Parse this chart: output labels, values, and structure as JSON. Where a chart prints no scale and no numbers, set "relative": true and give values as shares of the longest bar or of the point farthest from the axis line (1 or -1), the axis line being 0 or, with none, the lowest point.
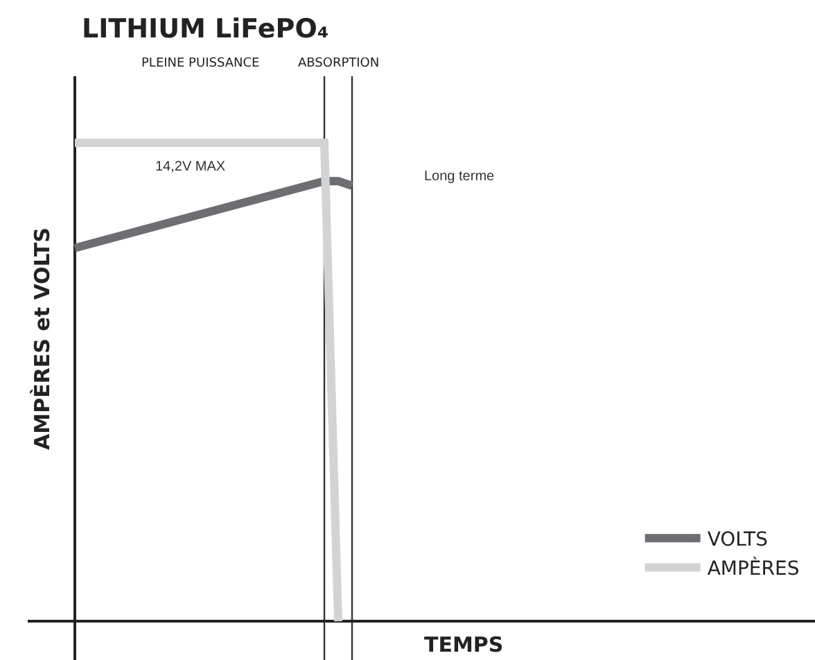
{
  "chart_data": {
    "type": "line",
    "title": "LITHIUM LiFePO₄",
    "xlabel": "TEMPS",
    "ylabel": "AMPÈRES et VOLTS",
    "relative": true,
    "legend": "bottom right",
    "line_style": "solid",
    "marker": "none",
    "categories": [
      null,
      null,
      null,
      null,
      null,
      null,
      null,
      null,
      null,
      null,
      null,
      null,
      null,
      null,
      null,
      null,
      null,
      null,
      null,
      null,
      null
    ],
    "series": [
      {
        "name": "VOLTS",
        "color": "#6d6e71",
        "values": [
          0.78,
          null,
          null,
          null,
          null,
          null,
          null,
          null,
          null,
          null,
          null,
          null,
          null,
          null,
          null,
          null,
          null,
          null,
          0.92,
          0.92,
          0.91
        ]
      },
      {
        "name": "AMPÈRES",
        "color": "#d1d3d4",
        "values": [
          1,
          null,
          null,
          null,
          null,
          null,
          null,
          null,
          null,
          null,
          null,
          null,
          null,
          null,
          null,
          null,
          null,
          null,
          1,
          0,
          null
        ]
      }
    ],
    "annotations": [
      "PLEINE PUISSANCE",
      "ABSORPTION",
      "14,2V MAX",
      "Long terme"
    ]
  }
}
